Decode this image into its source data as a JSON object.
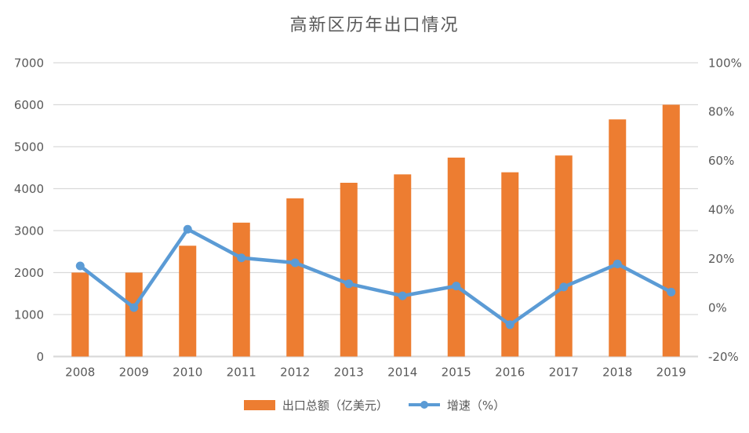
{
  "chart_data": {
    "type": "combo-bar-line",
    "title": "高新区历年出口情况",
    "categories": [
      "2008",
      "2009",
      "2010",
      "2011",
      "2012",
      "2013",
      "2014",
      "2015",
      "2016",
      "2017",
      "2018",
      "2019"
    ],
    "series": [
      {
        "name": "出口总额（亿美元）",
        "type": "bar",
        "axis": "left",
        "color": "#ED7D31",
        "values": [
          2000,
          2000,
          2640,
          3190,
          3770,
          4140,
          4340,
          4740,
          4390,
          4790,
          5650,
          6000
        ]
      },
      {
        "name": "增速（%）",
        "type": "line",
        "axis": "right",
        "color": "#5B9BD5",
        "values": [
          17,
          0,
          32,
          20.3,
          18.3,
          9.7,
          4.8,
          8.8,
          -7,
          8.4,
          17.8,
          6.3
        ]
      }
    ],
    "left_axis": {
      "min": 0,
      "max": 7000,
      "step": 1000,
      "tick_labels": [
        "0",
        "1000",
        "2000",
        "3000",
        "4000",
        "5000",
        "6000",
        "7000"
      ]
    },
    "right_axis": {
      "min": -20,
      "max": 100,
      "step": 20,
      "tick_labels": [
        "-20%",
        "0%",
        "20%",
        "40%",
        "60%",
        "80%",
        "100%"
      ]
    },
    "grid": true,
    "legend_position": "bottom",
    "styles": {
      "grid_color": "#D9D9D9",
      "baseline_color": "#D9D9D9",
      "axis_text_color": "#595959",
      "title_color": "#595959",
      "background": "#FFFFFF"
    }
  }
}
